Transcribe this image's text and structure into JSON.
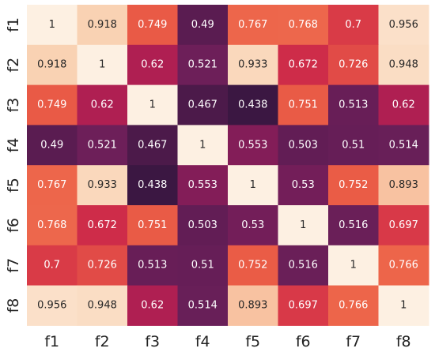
{
  "chart_data": {
    "type": "heatmap",
    "title": "",
    "xlabel": "",
    "ylabel": "",
    "x_categories": [
      "f1",
      "f2",
      "f3",
      "f4",
      "f5",
      "f6",
      "f7",
      "f8"
    ],
    "y_categories": [
      "f1",
      "f2",
      "f3",
      "f4",
      "f5",
      "f6",
      "f7",
      "f8"
    ],
    "values": [
      [
        1,
        0.918,
        0.749,
        0.49,
        0.767,
        0.768,
        0.7,
        0.956
      ],
      [
        0.918,
        1,
        0.62,
        0.521,
        0.933,
        0.672,
        0.726,
        0.948
      ],
      [
        0.749,
        0.62,
        1,
        0.467,
        0.438,
        0.751,
        0.513,
        0.62
      ],
      [
        0.49,
        0.521,
        0.467,
        1,
        0.553,
        0.503,
        0.51,
        0.514
      ],
      [
        0.767,
        0.933,
        0.438,
        0.553,
        1,
        0.53,
        0.752,
        0.893
      ],
      [
        0.768,
        0.672,
        0.751,
        0.503,
        0.53,
        1,
        0.516,
        0.697
      ],
      [
        0.7,
        0.726,
        0.513,
        0.51,
        0.752,
        0.516,
        1,
        0.766
      ],
      [
        0.956,
        0.948,
        0.62,
        0.514,
        0.893,
        0.697,
        0.766,
        1
      ]
    ],
    "value_labels": [
      [
        "1",
        "0.918",
        "0.749",
        "0.49",
        "0.767",
        "0.768",
        "0.7",
        "0.956"
      ],
      [
        "0.918",
        "1",
        "0.62",
        "0.521",
        "0.933",
        "0.672",
        "0.726",
        "0.948"
      ],
      [
        "0.749",
        "0.62",
        "1",
        "0.467",
        "0.438",
        "0.751",
        "0.513",
        "0.62"
      ],
      [
        "0.49",
        "0.521",
        "0.467",
        "1",
        "0.553",
        "0.503",
        "0.51",
        "0.514"
      ],
      [
        "0.767",
        "0.933",
        "0.438",
        "0.553",
        "1",
        "0.53",
        "0.752",
        "0.893"
      ],
      [
        "0.768",
        "0.672",
        "0.751",
        "0.503",
        "0.53",
        "1",
        "0.516",
        "0.697"
      ],
      [
        "0.7",
        "0.726",
        "0.513",
        "0.51",
        "0.752",
        "0.516",
        "1",
        "0.766"
      ],
      [
        "0.956",
        "0.948",
        "0.62",
        "0.514",
        "0.893",
        "0.697",
        "0.766",
        "1"
      ]
    ],
    "color_range": [
      0.438,
      1
    ],
    "colormap": [
      "#3b1742",
      "#6b1f59",
      "#a21a56",
      "#d22e48",
      "#ec6046",
      "#f5a07a",
      "#f9d3b4",
      "#fdf0e2"
    ],
    "grid": false,
    "legend": "none"
  }
}
